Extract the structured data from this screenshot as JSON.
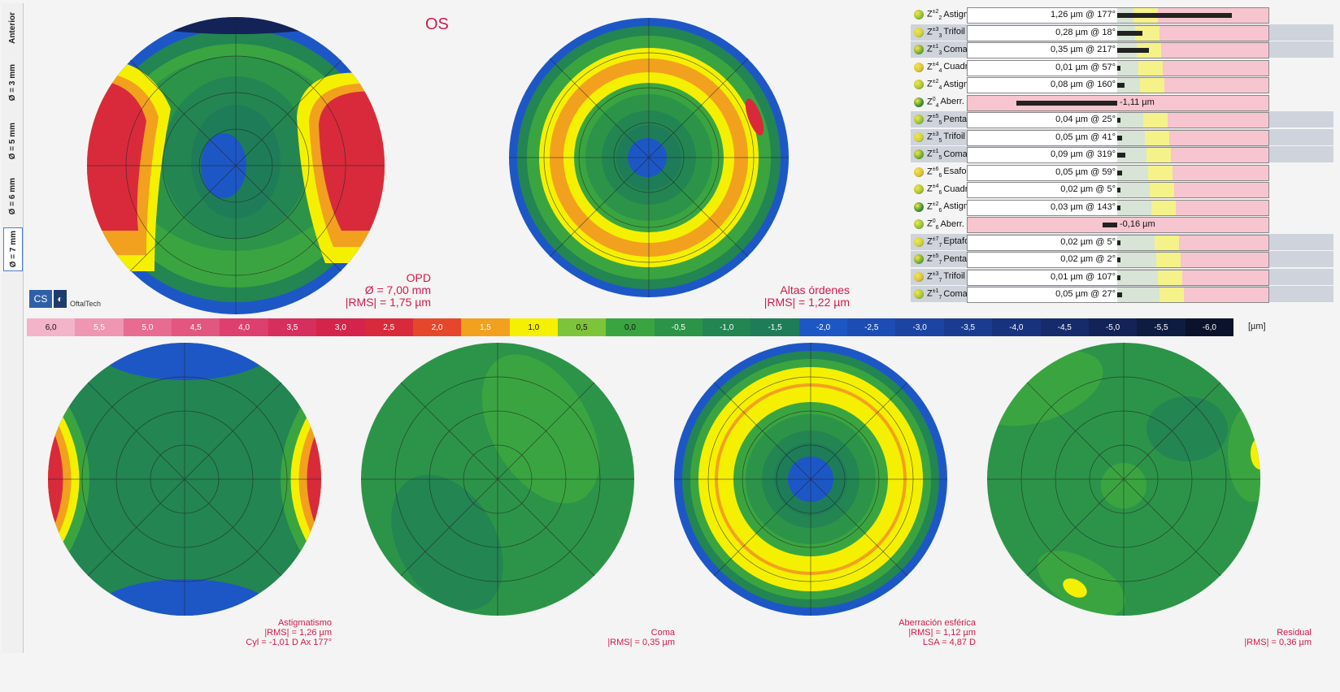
{
  "eye": "OS",
  "left_toolbar": {
    "buttons": [
      {
        "label": "Anterior",
        "selected": false
      },
      {
        "label": "Ø = 3 mm",
        "selected": false
      },
      {
        "label": "Ø = 5 mm",
        "selected": false
      },
      {
        "label": "Ø = 6 mm",
        "selected": false
      },
      {
        "label": "Ø = 7 mm",
        "selected": true
      }
    ]
  },
  "maps": {
    "opd": {
      "title": "OPD",
      "diameter": "Ø = 7,00 mm",
      "rms": "|RMS| = 1,75 µm"
    },
    "higher_orders": {
      "title": "Altas órdenes",
      "rms": "|RMS| = 1,22 µm"
    },
    "astigmatism": {
      "title": "Astigmatismo",
      "rms": "|RMS| = 1,26 µm",
      "extra": "Cyl = -1,01 D Ax 177°"
    },
    "coma": {
      "title": "Coma",
      "rms": "|RMS| = 0,35 µm"
    },
    "spherical": {
      "title": "Aberración esférica",
      "rms": "|RMS| = 1,12 µm",
      "extra": "LSA = 4,87 D"
    },
    "residual": {
      "title": "Residual",
      "rms": "|RMS| = 0,36 µm"
    }
  },
  "logo": {
    "text1": "CS",
    "text2": "OftalTech"
  },
  "scale": {
    "unit": "[µm]",
    "steps": [
      {
        "label": "6,0",
        "color": "#f3b3c8",
        "text": "#111"
      },
      {
        "label": "5,5",
        "color": "#ef96b2",
        "text": "#fff"
      },
      {
        "label": "5,0",
        "color": "#e86b92",
        "text": "#fff"
      },
      {
        "label": "4,5",
        "color": "#e35680",
        "text": "#fff"
      },
      {
        "label": "4,0",
        "color": "#dd3f6e",
        "text": "#fff"
      },
      {
        "label": "3,5",
        "color": "#d62f5e",
        "text": "#fff"
      },
      {
        "label": "3,0",
        "color": "#d4244c",
        "text": "#fff"
      },
      {
        "label": "2,5",
        "color": "#d92a3c",
        "text": "#fff"
      },
      {
        "label": "2,0",
        "color": "#e4472c",
        "text": "#fff"
      },
      {
        "label": "1,5",
        "color": "#f2a11e",
        "text": "#fff"
      },
      {
        "label": "1,0",
        "color": "#f5f000",
        "text": "#111"
      },
      {
        "label": "0,5",
        "color": "#7ec43a",
        "text": "#111"
      },
      {
        "label": "0,0",
        "color": "#3aa540",
        "text": "#111"
      },
      {
        "label": "-0,5",
        "color": "#2c9448",
        "text": "#fff"
      },
      {
        "label": "-1,0",
        "color": "#238552",
        "text": "#fff"
      },
      {
        "label": "-1,5",
        "color": "#1e7d58",
        "text": "#fff"
      },
      {
        "label": "-2,0",
        "color": "#1d57c6",
        "text": "#fff"
      },
      {
        "label": "-2,5",
        "color": "#1c4db5",
        "text": "#fff"
      },
      {
        "label": "-3,0",
        "color": "#1c44a2",
        "text": "#fff"
      },
      {
        "label": "-3,5",
        "color": "#1a3b90",
        "text": "#fff"
      },
      {
        "label": "-4,0",
        "color": "#18337e",
        "text": "#fff"
      },
      {
        "label": "-4,5",
        "color": "#162b6c",
        "text": "#fff"
      },
      {
        "label": "-5,0",
        "color": "#132358",
        "text": "#fff"
      },
      {
        "label": "-5,5",
        "color": "#0f1c42",
        "text": "#fff"
      },
      {
        "label": "-6,0",
        "color": "#0b132c",
        "text": "#fff"
      }
    ]
  },
  "zernike": [
    {
      "base": "Z",
      "sup": "±2",
      "sub": "2",
      "name": "Astigmatismo",
      "value": "1,26 µm @ 177°",
      "magnitude": 1.26,
      "alt": false
    },
    {
      "base": "Z",
      "sup": "±3",
      "sub": "3",
      "name": "Trifoil",
      "value": "0,28 µm @ 18°",
      "magnitude": 0.28,
      "alt": true
    },
    {
      "base": "Z",
      "sup": "±1",
      "sub": "3",
      "name": "Coma",
      "value": "0,35 µm @ 217°",
      "magnitude": 0.35,
      "alt": true
    },
    {
      "base": "Z",
      "sup": "±4",
      "sub": "4",
      "name": "Cuadrifoil",
      "value": "0,01 µm @ 57°",
      "magnitude": 0.01,
      "alt": false
    },
    {
      "base": "Z",
      "sup": "±2",
      "sub": "4",
      "name": "Astigmatismo II",
      "value": "0,08 µm @ 160°",
      "magnitude": 0.08,
      "alt": false
    },
    {
      "base": "Z",
      "sup": "0",
      "sub": "4",
      "name": "Aberr. esférica",
      "value": "-1,11 µm",
      "magnitude": -1.11,
      "alt": false
    },
    {
      "base": "Z",
      "sup": "±5",
      "sub": "5",
      "name": "Pentafoil",
      "value": "0,04 µm @ 25°",
      "magnitude": 0.04,
      "alt": true
    },
    {
      "base": "Z",
      "sup": "±3",
      "sub": "5",
      "name": "Trifoil II",
      "value": "0,05 µm @ 41°",
      "magnitude": 0.05,
      "alt": true
    },
    {
      "base": "Z",
      "sup": "±1",
      "sub": "5",
      "name": "Coma II",
      "value": "0,09 µm @ 319°",
      "magnitude": 0.09,
      "alt": true
    },
    {
      "base": "Z",
      "sup": "±6",
      "sub": "6",
      "name": "Esafoil",
      "value": "0,05 µm @ 59°",
      "magnitude": 0.05,
      "alt": false
    },
    {
      "base": "Z",
      "sup": "±4",
      "sub": "6",
      "name": "Cuadrifoil II",
      "value": "0,02 µm @ 5°",
      "magnitude": 0.02,
      "alt": false
    },
    {
      "base": "Z",
      "sup": "±2",
      "sub": "6",
      "name": "Astigmatismo III",
      "value": "0,03 µm @ 143°",
      "magnitude": 0.03,
      "alt": false
    },
    {
      "base": "Z",
      "sup": "0",
      "sub": "6",
      "name": "Aberr. esférica II",
      "value": "-0,16 µm",
      "magnitude": -0.16,
      "alt": false
    },
    {
      "base": "Z",
      "sup": "±7",
      "sub": "7",
      "name": "Eptafoil",
      "value": "0,02 µm @ 5°",
      "magnitude": 0.02,
      "alt": true
    },
    {
      "base": "Z",
      "sup": "±5",
      "sub": "7",
      "name": "Pentafoil II",
      "value": "0,02 µm @ 2°",
      "magnitude": 0.02,
      "alt": true
    },
    {
      "base": "Z",
      "sup": "±3",
      "sub": "7",
      "name": "Trifoil III",
      "value": "0,01 µm @ 107°",
      "magnitude": 0.01,
      "alt": true
    },
    {
      "base": "Z",
      "sup": "±1",
      "sub": "7",
      "name": "Coma III",
      "value": "0,05 µm @ 27°",
      "magnitude": 0.05,
      "alt": true
    }
  ]
}
